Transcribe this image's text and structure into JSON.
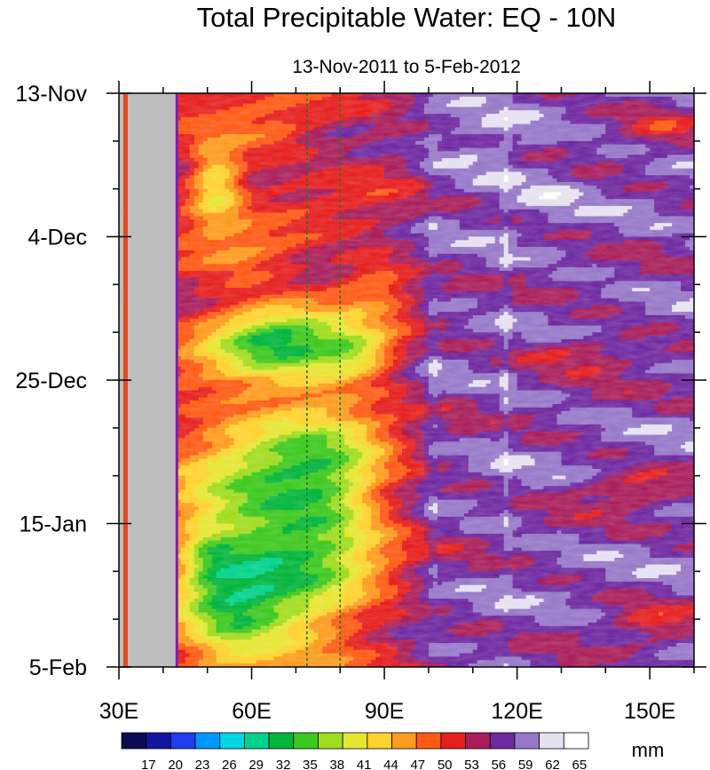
{
  "chart_data": {
    "type": "heatmap",
    "title": "Total Precipitable Water: EQ - 10N",
    "subtitle": "13-Nov-2011 to 5-Feb-2012",
    "x_axis": {
      "range": [
        30,
        160
      ],
      "ticks": [
        30,
        60,
        90,
        120,
        150
      ],
      "tick_labels": [
        "30E",
        "60E",
        "90E",
        "120E",
        "150E"
      ],
      "minor_tick_step": 10
    },
    "y_axis": {
      "range_days": [
        0,
        84
      ],
      "tick_days": [
        0,
        21,
        42,
        63,
        84
      ],
      "tick_labels": [
        "13-Nov",
        "4-Dec",
        "25-Dec",
        "15-Jan",
        "5-Feb"
      ],
      "minor_tick_step_days": 7,
      "direction": "time increases downward"
    },
    "colorbar": {
      "unit": "mm",
      "min": 14,
      "max": 66,
      "step": 1,
      "labels": [
        17,
        20,
        23,
        26,
        29,
        32,
        35,
        38,
        41,
        44,
        47,
        50,
        53,
        56,
        59,
        62,
        65
      ],
      "labels_text": [
        "17",
        "20",
        "23",
        "26",
        "29",
        "32",
        "35",
        "38",
        "41",
        "44",
        "47",
        "50",
        "53",
        "56",
        "59",
        "62",
        "65"
      ],
      "colors": [
        "#0b0a52",
        "#1414a0",
        "#1e3cf0",
        "#0096ff",
        "#00d6e6",
        "#00d28c",
        "#00b43c",
        "#3cc81e",
        "#a0dc1e",
        "#e6e632",
        "#ffd22d",
        "#ff9b1e",
        "#ff5a14",
        "#e61e1e",
        "#a81e5a",
        "#6e28a0",
        "#9678c8",
        "#e6e1f0",
        "#ffffff"
      ]
    },
    "land_mask_lon": [
      31.5,
      43
    ],
    "reference_lines_lon": [
      72.5,
      80
    ],
    "reference_line_style": "dashed green vertical",
    "features": [
      {
        "lon": [
          44,
          96
        ],
        "days": [
          42,
          84
        ],
        "value_mm": 33,
        "desc": "dry western Indian Ocean (Jan)"
      },
      {
        "lon": [
          44,
          80
        ],
        "days": [
          30,
          44
        ],
        "value_mm": 35,
        "desc": "dry band late Dec"
      },
      {
        "lon": [
          48,
          58
        ],
        "days": [
          6,
          16
        ],
        "value_mm": 39,
        "desc": "dry patch late Nov"
      },
      {
        "lon": [
          95,
          160
        ],
        "days": [
          0,
          84
        ],
        "value_mm": 57,
        "desc": "moist western Pacific / maritime continent"
      }
    ]
  }
}
